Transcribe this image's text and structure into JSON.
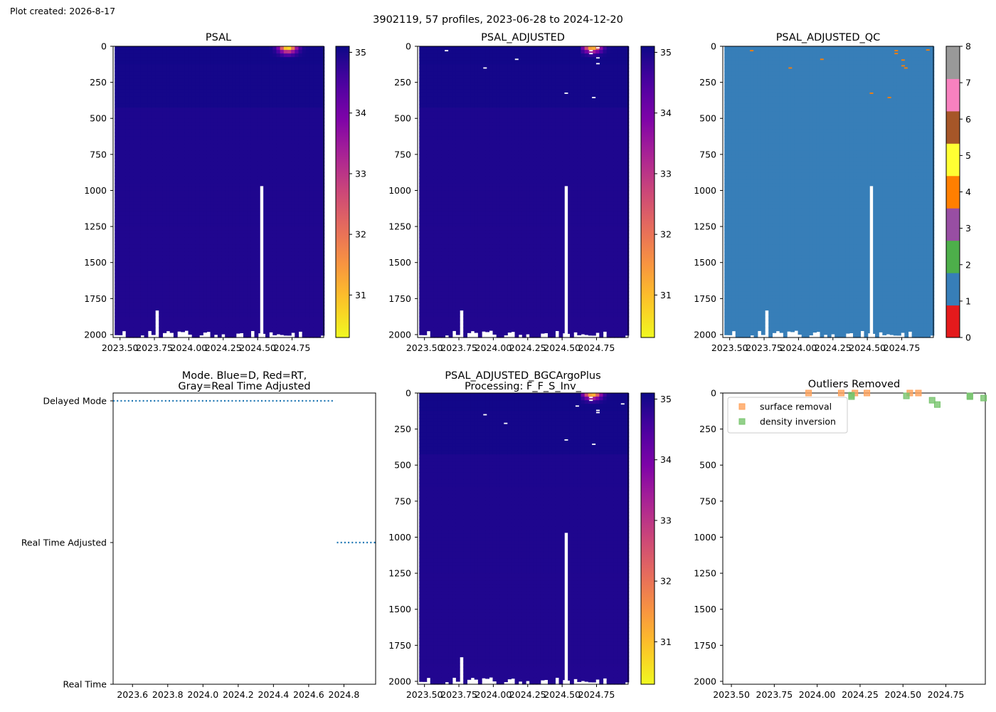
{
  "header": {
    "created": "Plot created: 2026-8-17",
    "suptitle": "3902119, 57 profiles, 2023-06-28 to 2024-12-20"
  },
  "colors": {
    "qc_palette": [
      "#e41a1c",
      "#377eb8",
      "#4daf4a",
      "#984ea3",
      "#ff7f00",
      "#ffff33",
      "#a65628",
      "#f781bf",
      "#999999"
    ],
    "mode_line": "#1f77b4",
    "surface_removal": "#ffa35c",
    "density_inversion": "#78c46e"
  },
  "chart_data": [
    {
      "id": "psal",
      "type": "heatmap",
      "title": "PSAL",
      "xlim": [
        2023.45,
        2024.98
      ],
      "ylim": [
        2020,
        0
      ],
      "xticks": [
        2023.5,
        2023.75,
        2024.0,
        2024.25,
        2024.5,
        2024.75
      ],
      "xtick_labels": [
        "2023.50",
        "2023.75",
        "2024.00",
        "2024.25",
        "2024.50",
        "2024.75"
      ],
      "yticks": [
        0,
        250,
        500,
        750,
        1000,
        1250,
        1500,
        1750,
        2000
      ],
      "ytick_labels": [
        "0",
        "250",
        "500",
        "750",
        "1000",
        "1250",
        "1500",
        "1750",
        "2000"
      ],
      "colormap": "plasma_r",
      "clim": [
        30.3,
        35.1
      ],
      "colorbar_ticks": [
        31,
        32,
        33,
        34,
        35
      ],
      "colorbar_labels": [
        "31",
        "32",
        "33",
        "34",
        "35"
      ],
      "gap_profile": {
        "x": 2024.53,
        "bottom_depth": 970
      },
      "fresh_surface": {
        "x_range": [
          2024.58,
          2024.98
        ],
        "max_depth": 80,
        "min_value": 30.6
      }
    },
    {
      "id": "psal_adjusted",
      "type": "heatmap",
      "title": "PSAL_ADJUSTED",
      "xlim": [
        2023.45,
        2024.98
      ],
      "ylim": [
        2020,
        0
      ],
      "xticks": [
        2023.5,
        2023.75,
        2024.0,
        2024.25,
        2024.5,
        2024.75
      ],
      "xtick_labels": [
        "2023.50",
        "2023.75",
        "2024.00",
        "2024.25",
        "2024.50",
        "2024.75"
      ],
      "yticks": [
        0,
        250,
        500,
        750,
        1000,
        1250,
        1500,
        1750,
        2000
      ],
      "ytick_labels": [
        "0",
        "250",
        "500",
        "750",
        "1000",
        "1250",
        "1500",
        "1750",
        "2000"
      ],
      "colormap": "plasma_r",
      "clim": [
        30.3,
        35.1
      ],
      "colorbar_ticks": [
        31,
        32,
        33,
        34,
        35
      ],
      "colorbar_labels": [
        "31",
        "32",
        "33",
        "34",
        "35"
      ],
      "gap_profile": {
        "x": 2024.53,
        "bottom_depth": 970
      },
      "masked_points": [
        [
          2023.66,
          30
        ],
        [
          2023.94,
          150
        ],
        [
          2024.17,
          90
        ],
        [
          2024.53,
          325
        ],
        [
          2024.71,
          30
        ],
        [
          2024.71,
          50
        ],
        [
          2024.73,
          355
        ],
        [
          2024.76,
          10
        ],
        [
          2024.76,
          80
        ],
        [
          2024.76,
          120
        ]
      ]
    },
    {
      "id": "psal_adjusted_qc",
      "type": "heatmap",
      "title": "PSAL_ADJUSTED_QC",
      "xlim": [
        2023.45,
        2024.98
      ],
      "ylim": [
        2020,
        0
      ],
      "xticks": [
        2023.5,
        2023.75,
        2024.0,
        2024.25,
        2024.5,
        2024.75
      ],
      "xtick_labels": [
        "2023.50",
        "2023.75",
        "2024.00",
        "2024.25",
        "2024.50",
        "2024.75"
      ],
      "yticks": [
        0,
        250,
        500,
        750,
        1000,
        1250,
        1500,
        1750,
        2000
      ],
      "ytick_labels": [
        "0",
        "250",
        "500",
        "750",
        "1000",
        "1250",
        "1500",
        "1750",
        "2000"
      ],
      "background_flag": 1,
      "flag_4_points": [
        [
          2023.94,
          150
        ],
        [
          2024.17,
          90
        ],
        [
          2023.66,
          30
        ],
        [
          2024.53,
          325
        ],
        [
          2024.66,
          355
        ],
        [
          2024.71,
          30
        ],
        [
          2024.71,
          50
        ],
        [
          2024.76,
          95
        ],
        [
          2024.76,
          135
        ],
        [
          2024.78,
          150
        ],
        [
          2024.94,
          25
        ]
      ],
      "colorbar_ticks": [
        0,
        1,
        2,
        3,
        4,
        5,
        6,
        7,
        8
      ],
      "colorbar_labels": [
        "0",
        "1",
        "2",
        "3",
        "4",
        "5",
        "6",
        "7",
        "8"
      ],
      "gap_profile": {
        "x": 2024.53,
        "bottom_depth": 970
      }
    },
    {
      "id": "mode",
      "type": "line",
      "title": "Mode. Blue=D, Red=RT,",
      "title_line2": "Gray=Real Time Adjusted",
      "xlim": [
        2023.49,
        2024.98
      ],
      "xticks": [
        2023.6,
        2023.8,
        2024.0,
        2024.2,
        2024.4,
        2024.6,
        2024.8
      ],
      "xtick_labels": [
        "2023.6",
        "2023.8",
        "2024.0",
        "2024.2",
        "2024.4",
        "2024.6",
        "2024.8"
      ],
      "categories": [
        "Delayed Mode",
        "Real Time Adjusted",
        "Real Time"
      ],
      "segments": [
        {
          "mode": "Delayed Mode",
          "x_start": 2023.49,
          "x_end": 2024.75
        },
        {
          "mode": "Real Time Adjusted",
          "x_start": 2024.76,
          "x_end": 2024.98
        }
      ]
    },
    {
      "id": "bgcargoplus",
      "type": "heatmap",
      "title": "PSAL_ADJUSTED_BGCArgoPlus",
      "title_line2": "Processing: F_F_S_Inv_",
      "xlim": [
        2023.45,
        2024.98
      ],
      "ylim": [
        2020,
        0
      ],
      "xticks": [
        2023.5,
        2023.75,
        2024.0,
        2024.25,
        2024.5,
        2024.75
      ],
      "xtick_labels": [
        "2023.50",
        "2023.75",
        "2024.00",
        "2024.25",
        "2024.50",
        "2024.75"
      ],
      "yticks": [
        0,
        250,
        500,
        750,
        1000,
        1250,
        1500,
        1750,
        2000
      ],
      "ytick_labels": [
        "0",
        "250",
        "500",
        "750",
        "1000",
        "1250",
        "1500",
        "1750",
        "2000"
      ],
      "colormap": "plasma_r",
      "clim": [
        30.3,
        35.1
      ],
      "colorbar_ticks": [
        31,
        32,
        33,
        34,
        35
      ],
      "colorbar_labels": [
        "31",
        "32",
        "33",
        "34",
        "35"
      ],
      "gap_profile": {
        "x": 2024.53,
        "bottom_depth": 970
      },
      "masked_points": [
        [
          2023.94,
          150
        ],
        [
          2024.09,
          210
        ],
        [
          2024.53,
          325
        ],
        [
          2024.61,
          90
        ],
        [
          2024.71,
          30
        ],
        [
          2024.71,
          50
        ],
        [
          2024.73,
          355
        ],
        [
          2024.76,
          120
        ],
        [
          2024.76,
          135
        ],
        [
          2024.94,
          75
        ]
      ]
    },
    {
      "id": "outliers",
      "type": "scatter",
      "title": "Outliers Removed",
      "xlim": [
        2023.45,
        2024.98
      ],
      "ylim": [
        2020,
        0
      ],
      "xticks": [
        2023.5,
        2023.75,
        2024.0,
        2024.25,
        2024.5,
        2024.75
      ],
      "xtick_labels": [
        "2023.50",
        "2023.75",
        "2024.00",
        "2024.25",
        "2024.50",
        "2024.75"
      ],
      "yticks": [
        0,
        250,
        500,
        750,
        1000,
        1250,
        1500,
        1750,
        2000
      ],
      "ytick_labels": [
        "0",
        "250",
        "500",
        "750",
        "1000",
        "1250",
        "1500",
        "1750",
        "2000"
      ],
      "legend_placement": "upper-left",
      "series": [
        {
          "name": "surface removal",
          "points": [
            [
              2023.95,
              0
            ],
            [
              2024.14,
              0
            ],
            [
              2024.22,
              0
            ],
            [
              2024.29,
              0
            ],
            [
              2024.54,
              0
            ],
            [
              2024.59,
              0
            ]
          ]
        },
        {
          "name": "density inversion",
          "points": [
            [
              2024.2,
              15
            ],
            [
              2024.2,
              25
            ],
            [
              2024.52,
              20
            ],
            [
              2024.67,
              50
            ],
            [
              2024.7,
              80
            ],
            [
              2024.89,
              20
            ],
            [
              2024.89,
              25
            ],
            [
              2024.97,
              35
            ]
          ]
        }
      ]
    }
  ]
}
